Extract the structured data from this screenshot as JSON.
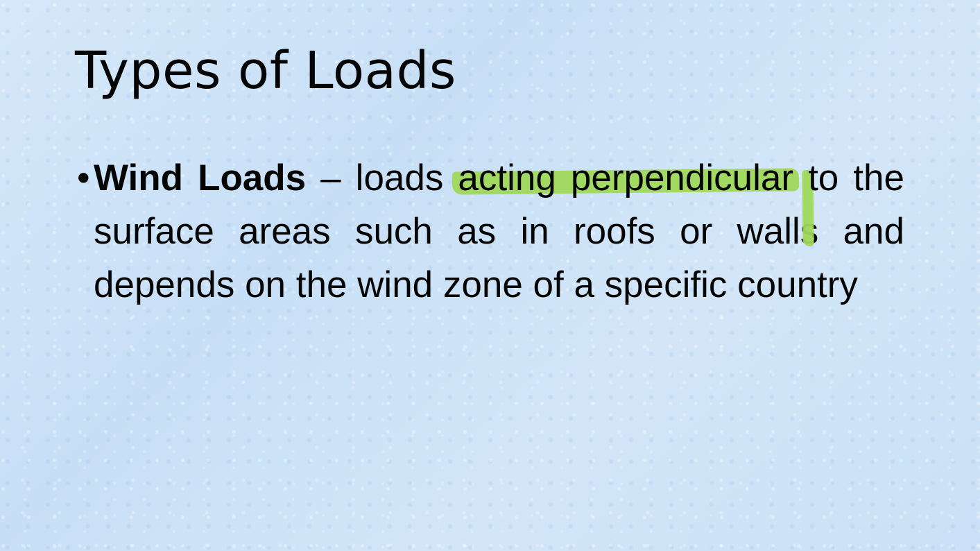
{
  "slide": {
    "title": "Types of Loads",
    "bullets": [
      {
        "marker": "•",
        "term": "Wind Loads",
        "dash": " – loads ",
        "highlight_1": "acting perpendicular",
        "space": " ",
        "highlight_2": "to the surface areas",
        "rest": " such as in roofs or walls and depends on the wind zone of a specific country"
      }
    ]
  },
  "colors": {
    "background": "#cfe3f7",
    "text": "#050505",
    "highlighter": "#9fd85a"
  }
}
